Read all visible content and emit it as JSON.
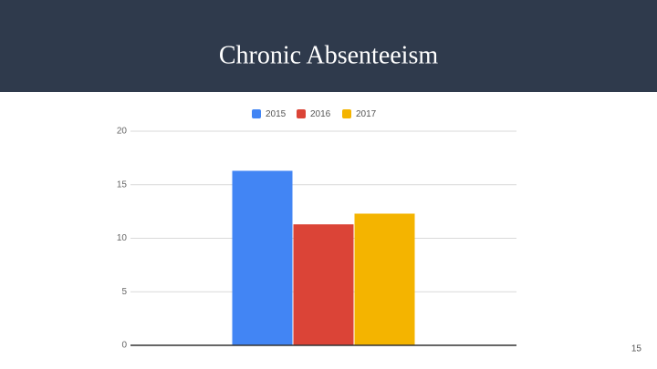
{
  "chart_data": {
    "type": "bar",
    "title": "Chronic Absenteeism",
    "categories": [
      null
    ],
    "series": [
      {
        "name": "2015",
        "color": "#4285f4",
        "values": [
          16.3
        ]
      },
      {
        "name": "2016",
        "color": "#db4437",
        "values": [
          11.3
        ]
      },
      {
        "name": "2017",
        "color": "#f4b400",
        "values": [
          12.3
        ]
      }
    ],
    "ylim": [
      0,
      20
    ],
    "yticks": [
      0,
      5,
      10,
      15,
      20
    ],
    "grid": true,
    "legend": "top"
  },
  "page_number": "15"
}
